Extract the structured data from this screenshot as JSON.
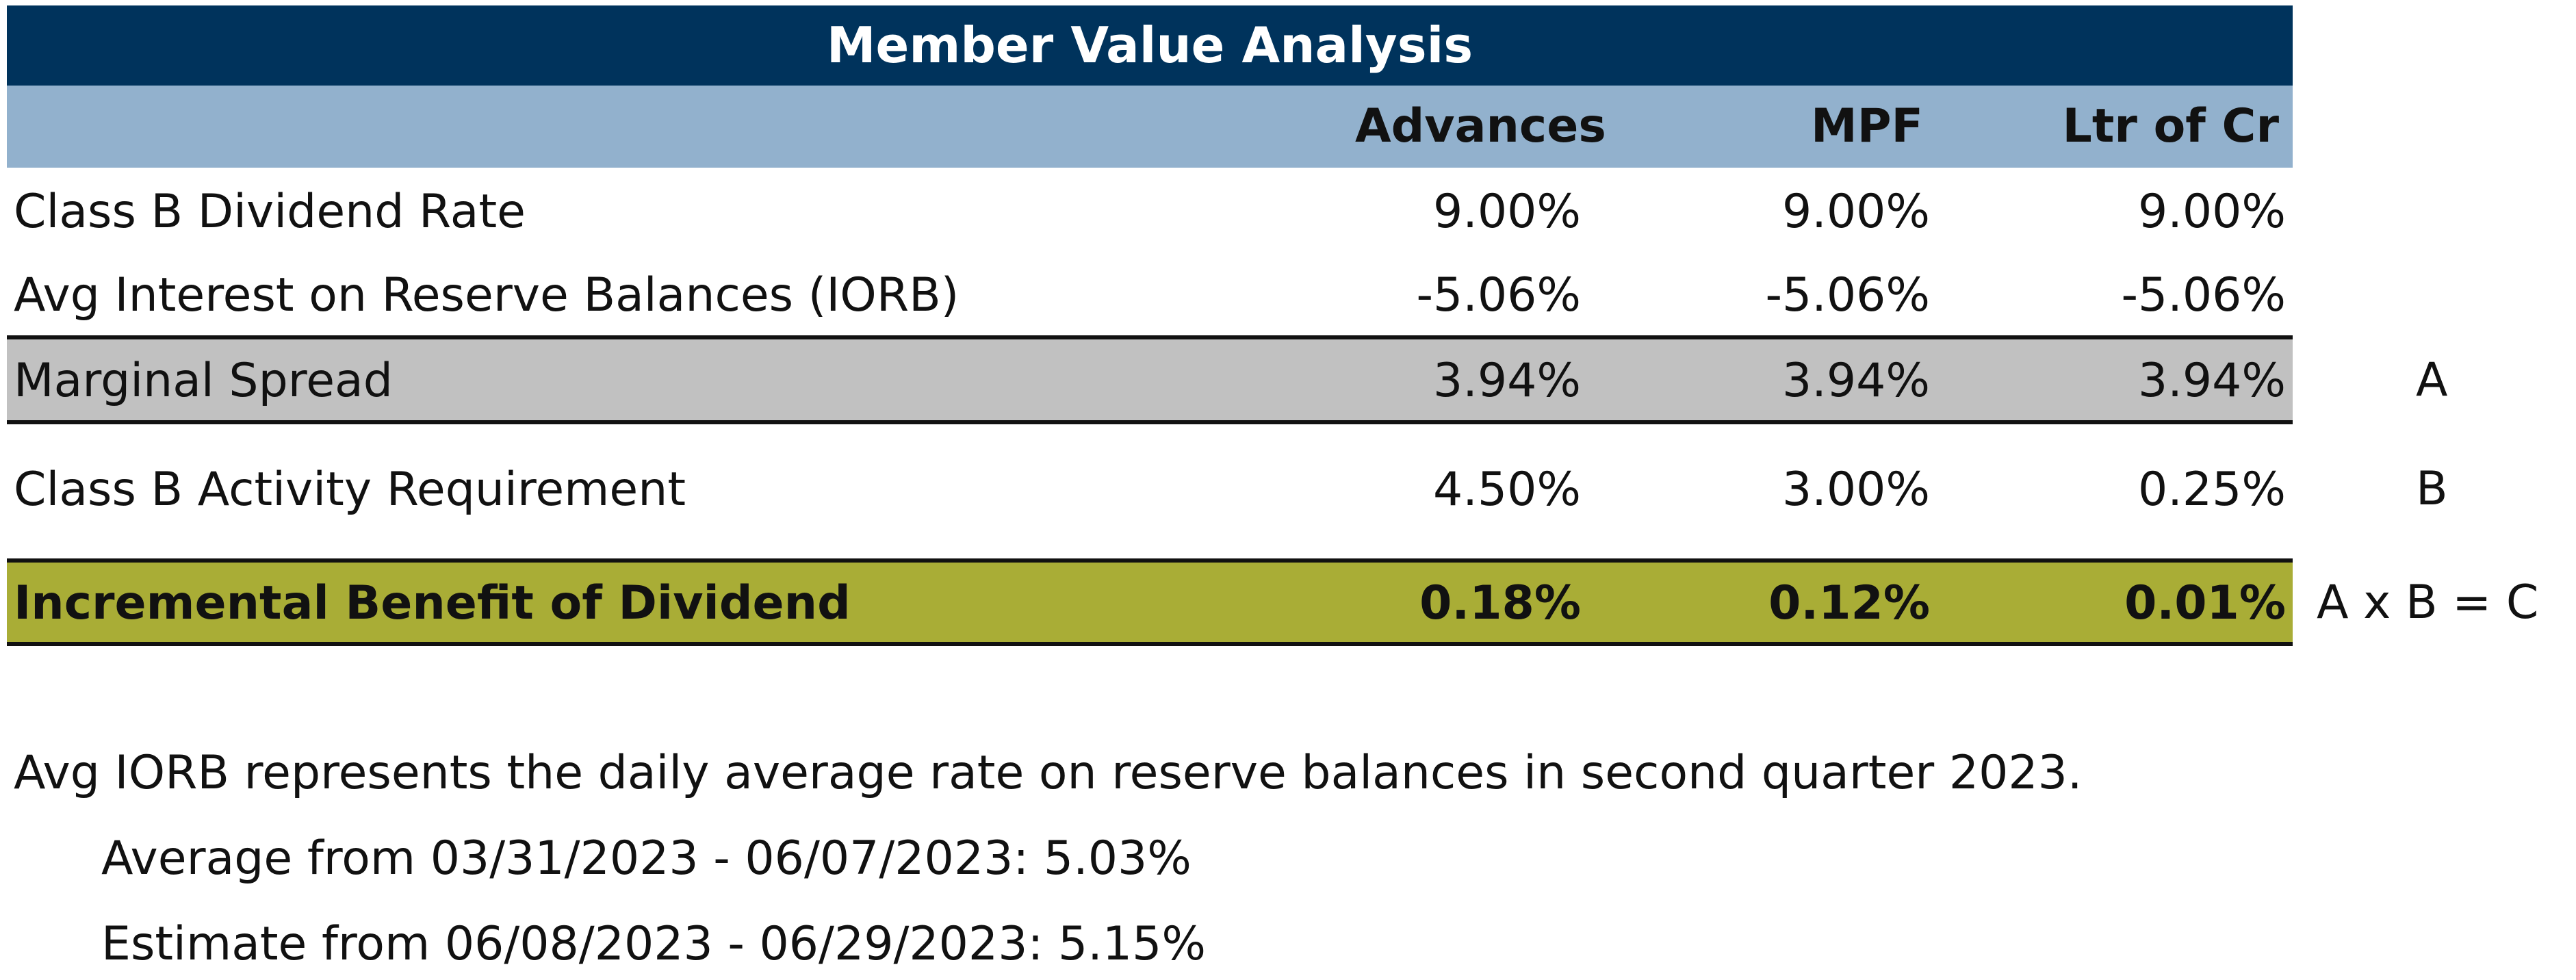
{
  "table": {
    "title": "Member Value Analysis",
    "columns": [
      "Advances",
      "MPF",
      "Ltr of Cr"
    ],
    "rows": [
      {
        "label": "Class B Dividend Rate",
        "values": [
          "9.00%",
          "9.00%",
          "9.00%"
        ],
        "marker": ""
      },
      {
        "label": "Avg Interest on Reserve Balances (IORB)",
        "values": [
          "-5.06%",
          "-5.06%",
          "-5.06%"
        ],
        "marker": ""
      },
      {
        "label": "Marginal Spread",
        "values": [
          "3.94%",
          "3.94%",
          "3.94%"
        ],
        "marker": "A"
      },
      {
        "label": "Class B Activity Requirement",
        "values": [
          "4.50%",
          "3.00%",
          "0.25%"
        ],
        "marker": "B"
      },
      {
        "label": "Incremental Benefit of Dividend",
        "values": [
          "0.18%",
          "0.12%",
          "0.01%"
        ],
        "marker": "A x B = C"
      }
    ]
  },
  "notes": {
    "line1": "Avg IORB represents the daily average rate on reserve balances in second quarter 2023.",
    "line2": "Average from 03/31/2023 - 06/07/2023: 5.03%",
    "line3": "Estimate from 06/08/2023 - 06/29/2023: 5.15%"
  },
  "colors": {
    "title_bg": "#00335c",
    "header_bg": "#92b1cd",
    "spread_bg": "#c1c1c1",
    "benefit_bg": "#a9ad36"
  }
}
